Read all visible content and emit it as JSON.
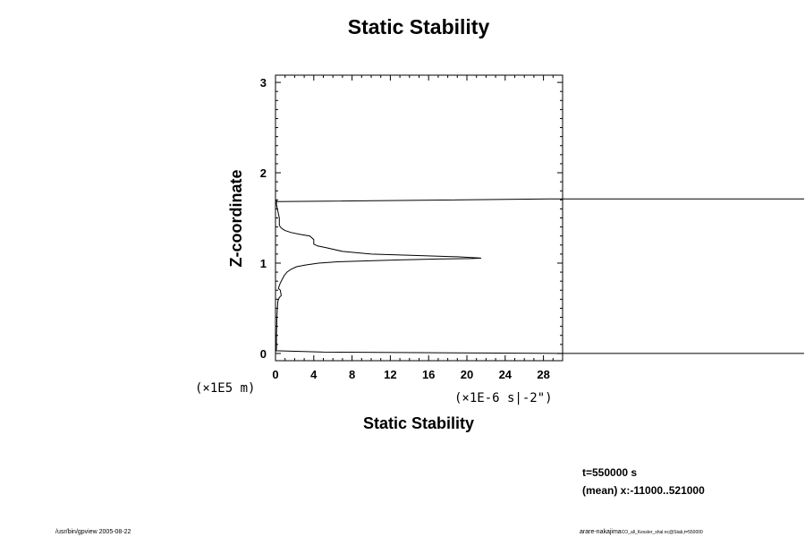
{
  "chart_data": {
    "type": "line",
    "title": "Static Stability",
    "xlabel": "Static Stability",
    "ylabel": "Z-coordinate",
    "x_unit": "(×1E-6 s|-2\")",
    "y_unit": "(×1E5 m)",
    "xlim": [
      0,
      30
    ],
    "ylim": [
      -0.08,
      3.08
    ],
    "x_ticks": [
      0,
      4,
      8,
      12,
      16,
      20,
      24,
      28
    ],
    "y_ticks": [
      0,
      1,
      2,
      3
    ],
    "series": [
      {
        "x": [
          0,
          0.1,
          0.1,
          0.15,
          0.2,
          0.25,
          0.4,
          0.6,
          0.5,
          0.3,
          0.5,
          0.7,
          0.9,
          1.2,
          1.6,
          2.2,
          3.2,
          4.5,
          6.5,
          9.5,
          13,
          17,
          20.5,
          21.5,
          19,
          14.5,
          10,
          7,
          5.3,
          4.4,
          4.0,
          4.0,
          3.6,
          2.5,
          1.6,
          1.0,
          0.7,
          0.5,
          0.4,
          0.4,
          0.2,
          0.1,
          0.1,
          0.1
        ],
        "y": [
          0.02,
          0.05,
          0.2,
          0.4,
          0.5,
          0.58,
          0.62,
          0.64,
          0.7,
          0.72,
          0.78,
          0.82,
          0.86,
          0.9,
          0.93,
          0.96,
          0.98,
          1.0,
          1.015,
          1.025,
          1.035,
          1.045,
          1.05,
          1.055,
          1.07,
          1.085,
          1.1,
          1.13,
          1.17,
          1.19,
          1.21,
          1.26,
          1.3,
          1.32,
          1.34,
          1.36,
          1.38,
          1.4,
          1.42,
          1.5,
          1.6,
          1.65,
          1.68,
          1.7
        ]
      }
    ],
    "overflow_lines": [
      {
        "x": [
          0.1,
          28.5,
          30
        ],
        "y": [
          1.68,
          1.71,
          1.71
        ]
      },
      {
        "x": [
          0,
          5,
          30
        ],
        "y": [
          0.03,
          0.015,
          0.0
        ]
      }
    ]
  },
  "info": {
    "time": "t=550000 s",
    "mean": "(mean) x:-11000..521000"
  },
  "footer": {
    "left": "/usr/bin/gpview 2005-08-22",
    "right_main": "arare-nakajima",
    "right_small": "CO_all_Kessler_shal.nc@Stab,t=550000"
  }
}
